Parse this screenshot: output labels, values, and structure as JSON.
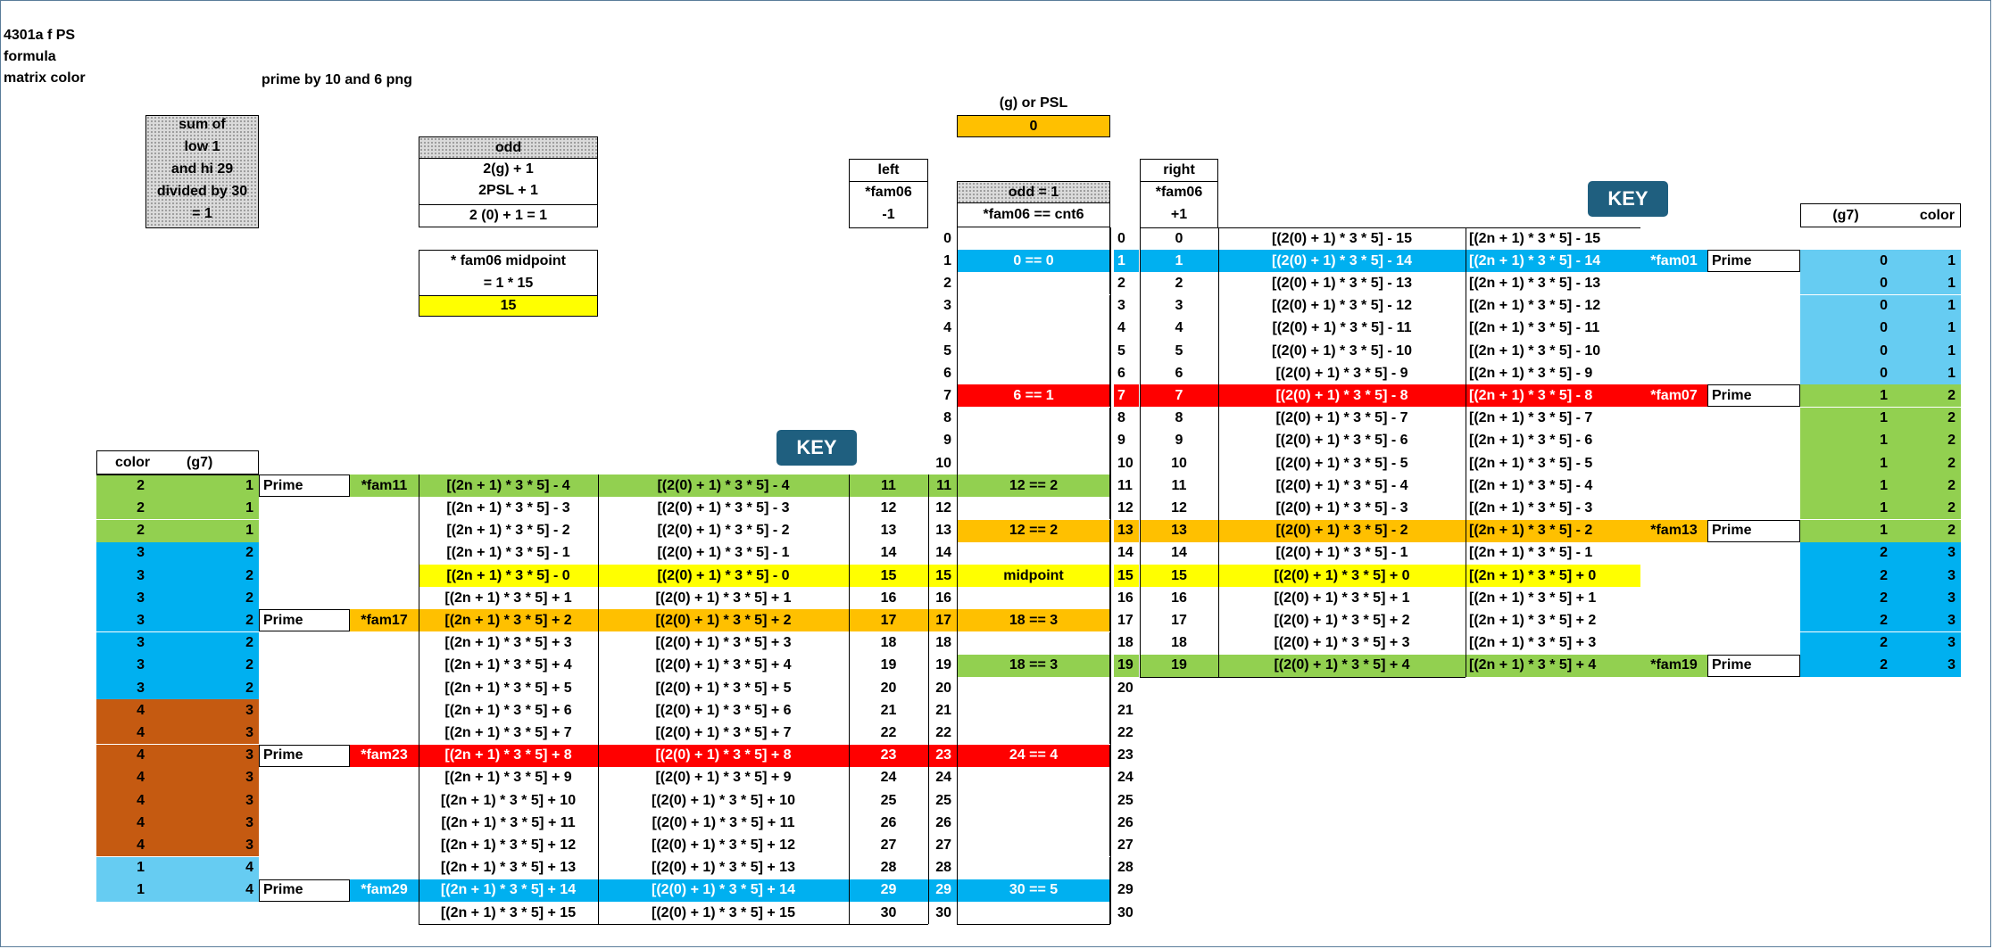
{
  "header": {
    "title": "4301a f PS",
    "line2": "formula",
    "line3": "matrix color",
    "subtitle": "prime by 10 and 6 png"
  },
  "sum_box": [
    "sum of",
    "low 1",
    "and hi 29",
    "divided by  30",
    "= 1"
  ],
  "odd_box": [
    "odd",
    "2(g) + 1",
    "2PSL + 1",
    "2 (0) + 1 = 1"
  ],
  "midpoint_box": [
    "* fam06 midpoint",
    "= 1 * 15",
    "15"
  ],
  "gpsl": {
    "label": "(g) or PSL",
    "value": "0"
  },
  "left_header": [
    "left",
    "*fam06",
    "-1"
  ],
  "right_header": [
    "right",
    "*fam06",
    "+1"
  ],
  "center_header": [
    "odd = 1",
    "*fam06  ==  cnt6"
  ],
  "key_label": "KEY",
  "right_legend_header": {
    "g7": "(g7)",
    "color": "color"
  },
  "left_legend_header": {
    "color": "color",
    "g7": "(g7)"
  },
  "colors": {
    "green": "#92d050",
    "blue": "#00b0f0",
    "red": "#ff0000",
    "orange": "#ffc000",
    "yellow": "#ffff00",
    "brown": "#c55a11",
    "lightblue": "#66ccf2",
    "key": "#1f5f7f"
  },
  "rows": [
    {
      "n": "0",
      "rf": "[(2(0) + 1) * 3 * 5] - 15",
      "rg": "[(2n + 1) * 3 * 5] - 15",
      "rfam": "",
      "rp": "",
      "mid": "",
      "hl": "",
      "rg7": "",
      "rcol": "",
      "rclr": ""
    },
    {
      "n": "1",
      "rf": "[(2(0) + 1) * 3 * 5] - 14",
      "rg": "[(2n + 1) * 3 * 5] - 14",
      "rfam": "*fam01",
      "rp": "Prime",
      "mid": "0  ==  0",
      "hl": "blue",
      "rg7": "0",
      "rcol": "1",
      "rclr": "lightblue"
    },
    {
      "n": "2",
      "rf": "[(2(0) + 1) * 3 * 5] - 13",
      "rg": "[(2n + 1) * 3 * 5] - 13",
      "rfam": "",
      "rp": "",
      "mid": "",
      "hl": "",
      "rg7": "0",
      "rcol": "1",
      "rclr": "lightblue"
    },
    {
      "n": "3",
      "rf": "[(2(0) + 1) * 3 * 5] - 12",
      "rg": "[(2n + 1) * 3 * 5] - 12",
      "rfam": "",
      "rp": "",
      "mid": "",
      "hl": "",
      "rg7": "0",
      "rcol": "1",
      "rclr": "lightblue"
    },
    {
      "n": "4",
      "rf": "[(2(0) + 1) * 3 * 5] - 11",
      "rg": "[(2n + 1) * 3 * 5] - 11",
      "rfam": "",
      "rp": "",
      "mid": "",
      "hl": "",
      "rg7": "0",
      "rcol": "1",
      "rclr": "lightblue"
    },
    {
      "n": "5",
      "rf": "[(2(0) + 1) * 3 * 5] - 10",
      "rg": "[(2n + 1) * 3 * 5] - 10",
      "rfam": "",
      "rp": "",
      "mid": "",
      "hl": "",
      "rg7": "0",
      "rcol": "1",
      "rclr": "lightblue"
    },
    {
      "n": "6",
      "rf": "[(2(0) + 1) * 3 * 5] - 9",
      "rg": "[(2n + 1) * 3 * 5] - 9",
      "rfam": "",
      "rp": "",
      "mid": "",
      "hl": "",
      "rg7": "0",
      "rcol": "1",
      "rclr": "lightblue"
    },
    {
      "n": "7",
      "rf": "[(2(0) + 1) * 3 * 5] - 8",
      "rg": "[(2n + 1) * 3 * 5] - 8",
      "rfam": "*fam07",
      "rp": "Prime",
      "mid": "6  ==  1",
      "hl": "red",
      "rg7": "1",
      "rcol": "2",
      "rclr": "green"
    },
    {
      "n": "8",
      "rf": "[(2(0) + 1) * 3 * 5] - 7",
      "rg": "[(2n + 1) * 3 * 5] - 7",
      "rfam": "",
      "rp": "",
      "mid": "",
      "hl": "",
      "rg7": "1",
      "rcol": "2",
      "rclr": "green"
    },
    {
      "n": "9",
      "rf": "[(2(0) + 1) * 3 * 5] - 6",
      "rg": "[(2n + 1) * 3 * 5] - 6",
      "rfam": "",
      "rp": "",
      "mid": "",
      "hl": "",
      "rg7": "1",
      "rcol": "2",
      "rclr": "green"
    },
    {
      "n": "10",
      "rf": "[(2(0) + 1) * 3 * 5] - 5",
      "rg": "[(2n + 1) * 3 * 5] - 5",
      "rfam": "",
      "rp": "",
      "mid": "",
      "hl": "",
      "rg7": "1",
      "rcol": "2",
      "rclr": "green"
    },
    {
      "n": "11",
      "rf": "[(2(0) + 1) * 3 * 5] - 4",
      "rg": "[(2n + 1) * 3 * 5] - 4",
      "rfam": "",
      "rp": "",
      "mid": "12 == 2",
      "hl": "leftgreen",
      "rg7": "1",
      "rcol": "2",
      "rclr": "green",
      "lcol": "2",
      "lg7": "1",
      "lclr": "green",
      "lp": "Prime",
      "lfam": "*fam11",
      "lg": "[(2n + 1) * 3 * 5] - 4",
      "lf": "[(2(0) + 1) * 3 * 5] - 4",
      "ln": "11"
    },
    {
      "n": "12",
      "rf": "[(2(0) + 1) * 3 * 5] - 3",
      "rg": "[(2n + 1) * 3 * 5] - 3",
      "rfam": "",
      "rp": "",
      "mid": "",
      "hl": "",
      "rg7": "1",
      "rcol": "2",
      "rclr": "green",
      "lcol": "2",
      "lg7": "1",
      "lclr": "green",
      "lp": "",
      "lfam": "",
      "lg": "[(2n + 1) * 3 * 5] - 3",
      "lf": "[(2(0) + 1) * 3 * 5] - 3",
      "ln": "12"
    },
    {
      "n": "13",
      "rf": "[(2(0) + 1) * 3 * 5] - 2",
      "rg": "[(2n + 1) * 3 * 5] - 2",
      "rfam": "*fam13",
      "rp": "Prime",
      "mid": "12  ==  2",
      "hl": "orange",
      "rg7": "1",
      "rcol": "2",
      "rclr": "green",
      "lcol": "2",
      "lg7": "1",
      "lclr": "green",
      "lp": "",
      "lfam": "",
      "lg": "[(2n + 1) * 3 * 5] - 2",
      "lf": "[(2(0) + 1) * 3 * 5] - 2",
      "ln": "13"
    },
    {
      "n": "14",
      "rf": "[(2(0) + 1) * 3 * 5] - 1",
      "rg": "[(2n + 1) * 3 * 5] - 1",
      "rfam": "",
      "rp": "",
      "mid": "",
      "hl": "",
      "rg7": "2",
      "rcol": "3",
      "rclr": "blue",
      "lcol": "3",
      "lg7": "2",
      "lclr": "blue",
      "lp": "",
      "lfam": "",
      "lg": "[(2n + 1) * 3 * 5] - 1",
      "lf": "[(2(0) + 1) * 3 * 5] - 1",
      "ln": "14"
    },
    {
      "n": "15",
      "rf": "[(2(0) + 1) * 3 * 5] + 0",
      "rg": "[(2n + 1) * 3 * 5] + 0",
      "rfam": "",
      "rp": "",
      "mid": "midpoint",
      "hl": "yellow",
      "rg7": "2",
      "rcol": "3",
      "rclr": "blue",
      "lcol": "3",
      "lg7": "2",
      "lclr": "blue",
      "lp": "",
      "lfam": "",
      "lg": "[(2n + 1) * 3 * 5] - 0",
      "lf": "[(2(0) + 1) * 3 * 5] - 0",
      "ln": "15"
    },
    {
      "n": "16",
      "rf": "[(2(0) + 1) * 3 * 5] + 1",
      "rg": "[(2n + 1) * 3 * 5] + 1",
      "rfam": "",
      "rp": "",
      "mid": "",
      "hl": "",
      "rg7": "2",
      "rcol": "3",
      "rclr": "blue",
      "lcol": "3",
      "lg7": "2",
      "lclr": "blue",
      "lp": "",
      "lfam": "",
      "lg": "[(2n + 1) * 3 * 5] + 1",
      "lf": "[(2(0) + 1) * 3 * 5] + 1",
      "ln": "16"
    },
    {
      "n": "17",
      "rf": "[(2(0) + 1) * 3 * 5] + 2",
      "rg": "[(2n + 1) * 3 * 5] + 2",
      "rfam": "",
      "rp": "",
      "mid": "18 == 3",
      "hl": "leftorange",
      "rg7": "2",
      "rcol": "3",
      "rclr": "blue",
      "lcol": "3",
      "lg7": "2",
      "lclr": "blue",
      "lp": "Prime",
      "lfam": "*fam17",
      "lg": "[(2n + 1) * 3 * 5] + 2",
      "lf": "[(2(0) + 1) * 3 * 5] + 2",
      "ln": "17"
    },
    {
      "n": "18",
      "rf": "[(2(0) + 1) * 3 * 5] + 3",
      "rg": "[(2n + 1) * 3 * 5] + 3",
      "rfam": "",
      "rp": "",
      "mid": "",
      "hl": "",
      "rg7": "2",
      "rcol": "3",
      "rclr": "blue",
      "lcol": "3",
      "lg7": "2",
      "lclr": "blue",
      "lp": "",
      "lfam": "",
      "lg": "[(2n + 1) * 3 * 5] + 3",
      "lf": "[(2(0) + 1) * 3 * 5] + 3",
      "ln": "18"
    },
    {
      "n": "19",
      "rf": "[(2(0) + 1) * 3 * 5] + 4",
      "rg": "[(2n + 1) * 3 * 5] + 4",
      "rfam": "*fam19",
      "rp": "Prime",
      "mid": "18  ==  3",
      "hl": "green",
      "rg7": "2",
      "rcol": "3",
      "rclr": "blue",
      "lcol": "3",
      "lg7": "2",
      "lclr": "blue",
      "lp": "",
      "lfam": "",
      "lg": "[(2n + 1) * 3 * 5] + 4",
      "lf": "[(2(0) + 1) * 3 * 5] + 4",
      "ln": "19"
    },
    {
      "n": "20",
      "mid": "",
      "hl": "",
      "lcol": "3",
      "lg7": "2",
      "lclr": "blue",
      "lp": "",
      "lfam": "",
      "lg": "[(2n + 1) * 3 * 5] + 5",
      "lf": "[(2(0) + 1) * 3 * 5] + 5",
      "ln": "20"
    },
    {
      "n": "21",
      "mid": "",
      "hl": "",
      "lcol": "4",
      "lg7": "3",
      "lclr": "brown",
      "lp": "",
      "lfam": "",
      "lg": "[(2n + 1) * 3 * 5] + 6",
      "lf": "[(2(0) + 1) * 3 * 5] + 6",
      "ln": "21"
    },
    {
      "n": "22",
      "mid": "",
      "hl": "",
      "lcol": "4",
      "lg7": "3",
      "lclr": "brown",
      "lp": "",
      "lfam": "",
      "lg": "[(2n + 1) * 3 * 5] + 7",
      "lf": "[(2(0) + 1) * 3 * 5] + 7",
      "ln": "22"
    },
    {
      "n": "23",
      "mid": "24 == 4",
      "hl": "leftred",
      "lcol": "4",
      "lg7": "3",
      "lclr": "brown",
      "lp": "Prime",
      "lfam": "*fam23",
      "lg": "[(2n + 1) * 3 * 5] + 8",
      "lf": "[(2(0) + 1) * 3 * 5] + 8",
      "ln": "23"
    },
    {
      "n": "24",
      "mid": "",
      "hl": "",
      "lcol": "4",
      "lg7": "3",
      "lclr": "brown",
      "lp": "",
      "lfam": "",
      "lg": "[(2n + 1) * 3 * 5] + 9",
      "lf": "[(2(0) + 1) * 3 * 5] + 9",
      "ln": "24"
    },
    {
      "n": "25",
      "mid": "",
      "hl": "",
      "lcol": "4",
      "lg7": "3",
      "lclr": "brown",
      "lp": "",
      "lfam": "",
      "lg": "[(2n + 1) * 3 * 5] + 10",
      "lf": "[(2(0) + 1) * 3 * 5] + 10",
      "ln": "25"
    },
    {
      "n": "26",
      "mid": "",
      "hl": "",
      "lcol": "4",
      "lg7": "3",
      "lclr": "brown",
      "lp": "",
      "lfam": "",
      "lg": "[(2n + 1) * 3 * 5] + 11",
      "lf": "[(2(0) + 1) * 3 * 5] + 11",
      "ln": "26"
    },
    {
      "n": "27",
      "mid": "",
      "hl": "",
      "lcol": "4",
      "lg7": "3",
      "lclr": "brown",
      "lp": "",
      "lfam": "",
      "lg": "[(2n + 1) * 3 * 5] + 12",
      "lf": "[(2(0) + 1) * 3 * 5] + 12",
      "ln": "27"
    },
    {
      "n": "28",
      "mid": "",
      "hl": "",
      "lcol": "1",
      "lg7": "4",
      "lclr": "lightblue",
      "lp": "",
      "lfam": "",
      "lg": "[(2n + 1) * 3 * 5] + 13",
      "lf": "[(2(0) + 1) * 3 * 5] + 13",
      "ln": "28"
    },
    {
      "n": "29",
      "mid": "30 == 5",
      "hl": "leftblue",
      "lcol": "1",
      "lg7": "4",
      "lclr": "lightblue",
      "lp": "Prime",
      "lfam": "*fam29",
      "lg": "[(2n + 1) * 3 * 5] + 14",
      "lf": "[(2(0) + 1) * 3 * 5] + 14",
      "ln": "29"
    },
    {
      "n": "30",
      "mid": "",
      "hl": "",
      "lcol": "",
      "lg7": "",
      "lclr": "",
      "lp": "",
      "lfam": "",
      "lg": "[(2n + 1) * 3 * 5] + 15",
      "lf": "[(2(0) + 1) * 3 * 5] + 15",
      "ln": "30"
    }
  ]
}
